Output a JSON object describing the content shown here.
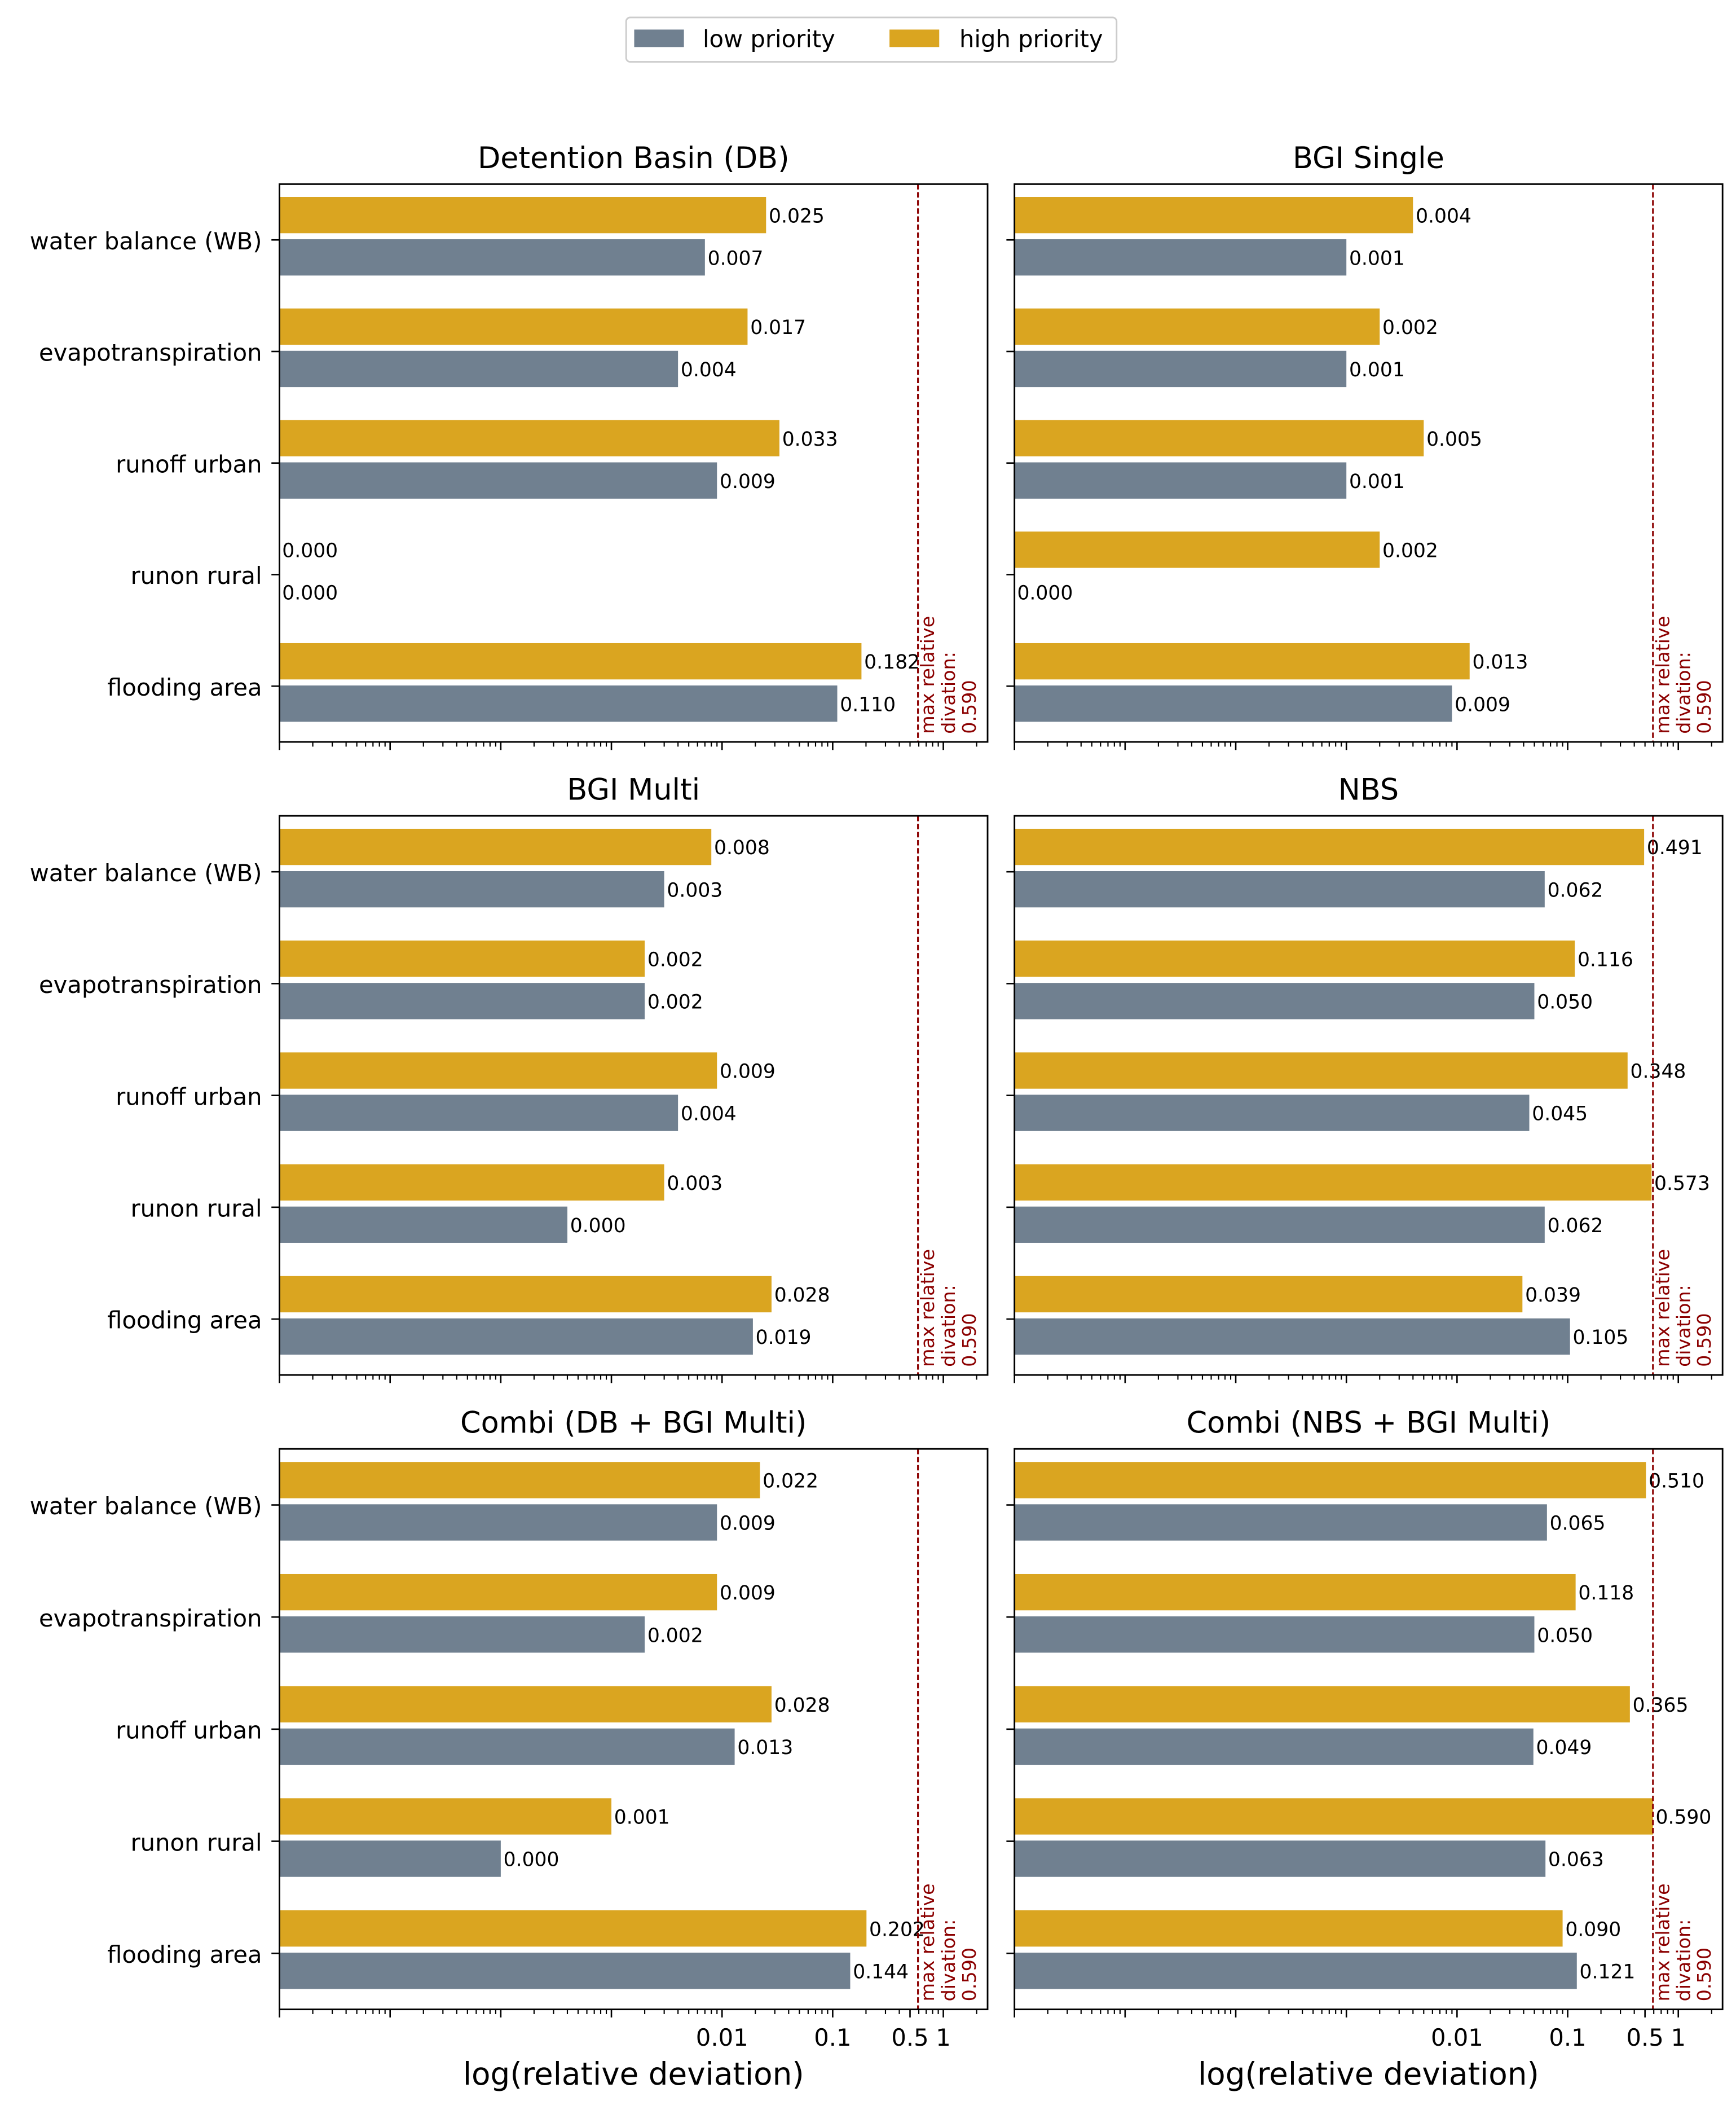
{
  "legend": [
    {
      "label": "low priority",
      "color": "#708090"
    },
    {
      "label": "high priority",
      "color": "#daa520"
    }
  ],
  "colors": {
    "low": "#708090",
    "high": "#daa520",
    "threshold": "#8b0000"
  },
  "threshold": {
    "value": 0.59,
    "label_lines": [
      "max relative",
      "divation:",
      "0.590"
    ]
  },
  "x_axis": {
    "label": "log(relative deviation)",
    "ticks": [
      {
        "value": 0.01,
        "label": "0.01"
      },
      {
        "value": 0.1,
        "label": "0.1"
      },
      {
        "value": 0.5,
        "label": "0.5"
      },
      {
        "value": 1,
        "label": "1"
      }
    ]
  },
  "chart_data": [
    {
      "type": "bar",
      "orientation": "horizontal",
      "title": "Detention Basin (DB)",
      "categories": [
        "water balance (WB)",
        "evapotranspiration",
        "runoff urban",
        "runon rural",
        "flooding area"
      ],
      "series": [
        {
          "name": "high priority",
          "values": [
            0.025,
            0.017,
            0.033,
            0.0,
            0.182
          ],
          "labels": [
            "0.025",
            "0.017",
            "0.033",
            "0.000",
            "0.182"
          ]
        },
        {
          "name": "low priority",
          "values": [
            0.007,
            0.004,
            0.009,
            0.0,
            0.11
          ],
          "labels": [
            "0.007",
            "0.004",
            "0.009",
            "0.000",
            "0.110"
          ]
        }
      ],
      "xscale": "log",
      "xlabel": ""
    },
    {
      "type": "bar",
      "orientation": "horizontal",
      "title": "BGI Single",
      "categories": [
        "water balance (WB)",
        "evapotranspiration",
        "runoff urban",
        "runon rural",
        "flooding area"
      ],
      "series": [
        {
          "name": "high priority",
          "values": [
            0.004,
            0.002,
            0.005,
            0.002,
            0.013
          ],
          "labels": [
            "0.004",
            "0.002",
            "0.005",
            "0.002",
            "0.013"
          ]
        },
        {
          "name": "low priority",
          "values": [
            0.001,
            0.001,
            0.001,
            0.0,
            0.009
          ],
          "labels": [
            "0.001",
            "0.001",
            "0.001",
            "0.000",
            "0.009"
          ]
        }
      ],
      "xscale": "log",
      "xlabel": ""
    },
    {
      "type": "bar",
      "orientation": "horizontal",
      "title": "BGI Multi",
      "categories": [
        "water balance (WB)",
        "evapotranspiration",
        "runoff urban",
        "runon rural",
        "flooding area"
      ],
      "series": [
        {
          "name": "high priority",
          "values": [
            0.008,
            0.002,
            0.009,
            0.003,
            0.028
          ],
          "labels": [
            "0.008",
            "0.002",
            "0.009",
            "0.003",
            "0.028"
          ]
        },
        {
          "name": "low priority",
          "values": [
            0.003,
            0.002,
            0.004,
            0.0004,
            0.019
          ],
          "labels": [
            "0.003",
            "0.002",
            "0.004",
            "0.000",
            "0.019"
          ]
        }
      ],
      "xscale": "log",
      "xlabel": ""
    },
    {
      "type": "bar",
      "orientation": "horizontal",
      "title": "NBS",
      "categories": [
        "water balance (WB)",
        "evapotranspiration",
        "runoff urban",
        "runon rural",
        "flooding area"
      ],
      "series": [
        {
          "name": "high priority",
          "values": [
            0.491,
            0.116,
            0.348,
            0.573,
            0.039
          ],
          "labels": [
            "0.491",
            "0.116",
            "0.348",
            "0.573",
            "0.039"
          ]
        },
        {
          "name": "low priority",
          "values": [
            0.062,
            0.05,
            0.045,
            0.062,
            0.105
          ],
          "labels": [
            "0.062",
            "0.050",
            "0.045",
            "0.062",
            "0.105"
          ]
        }
      ],
      "xscale": "log",
      "xlabel": ""
    },
    {
      "type": "bar",
      "orientation": "horizontal",
      "title": "Combi (DB + BGI Multi)",
      "categories": [
        "water balance (WB)",
        "evapotranspiration",
        "runoff urban",
        "runon rural",
        "flooding area"
      ],
      "series": [
        {
          "name": "high priority",
          "values": [
            0.022,
            0.009,
            0.028,
            0.001,
            0.202
          ],
          "labels": [
            "0.022",
            "0.009",
            "0.028",
            "0.001",
            "0.202"
          ]
        },
        {
          "name": "low priority",
          "values": [
            0.009,
            0.002,
            0.013,
            0.0001,
            0.144
          ],
          "labels": [
            "0.009",
            "0.002",
            "0.013",
            "0.000",
            "0.144"
          ]
        }
      ],
      "xscale": "log",
      "xlabel": "log(relative deviation)"
    },
    {
      "type": "bar",
      "orientation": "horizontal",
      "title": "Combi (NBS + BGI Multi)",
      "categories": [
        "water balance (WB)",
        "evapotranspiration",
        "runoff urban",
        "runon rural",
        "flooding area"
      ],
      "series": [
        {
          "name": "high priority",
          "values": [
            0.51,
            0.118,
            0.365,
            0.59,
            0.09
          ],
          "labels": [
            "0.510",
            "0.118",
            "0.365",
            "0.590",
            "0.090"
          ]
        },
        {
          "name": "low priority",
          "values": [
            0.065,
            0.05,
            0.049,
            0.063,
            0.121
          ],
          "labels": [
            "0.065",
            "0.050",
            "0.049",
            "0.063",
            "0.121"
          ]
        }
      ],
      "xscale": "log",
      "xlabel": "log(relative deviation)"
    }
  ]
}
